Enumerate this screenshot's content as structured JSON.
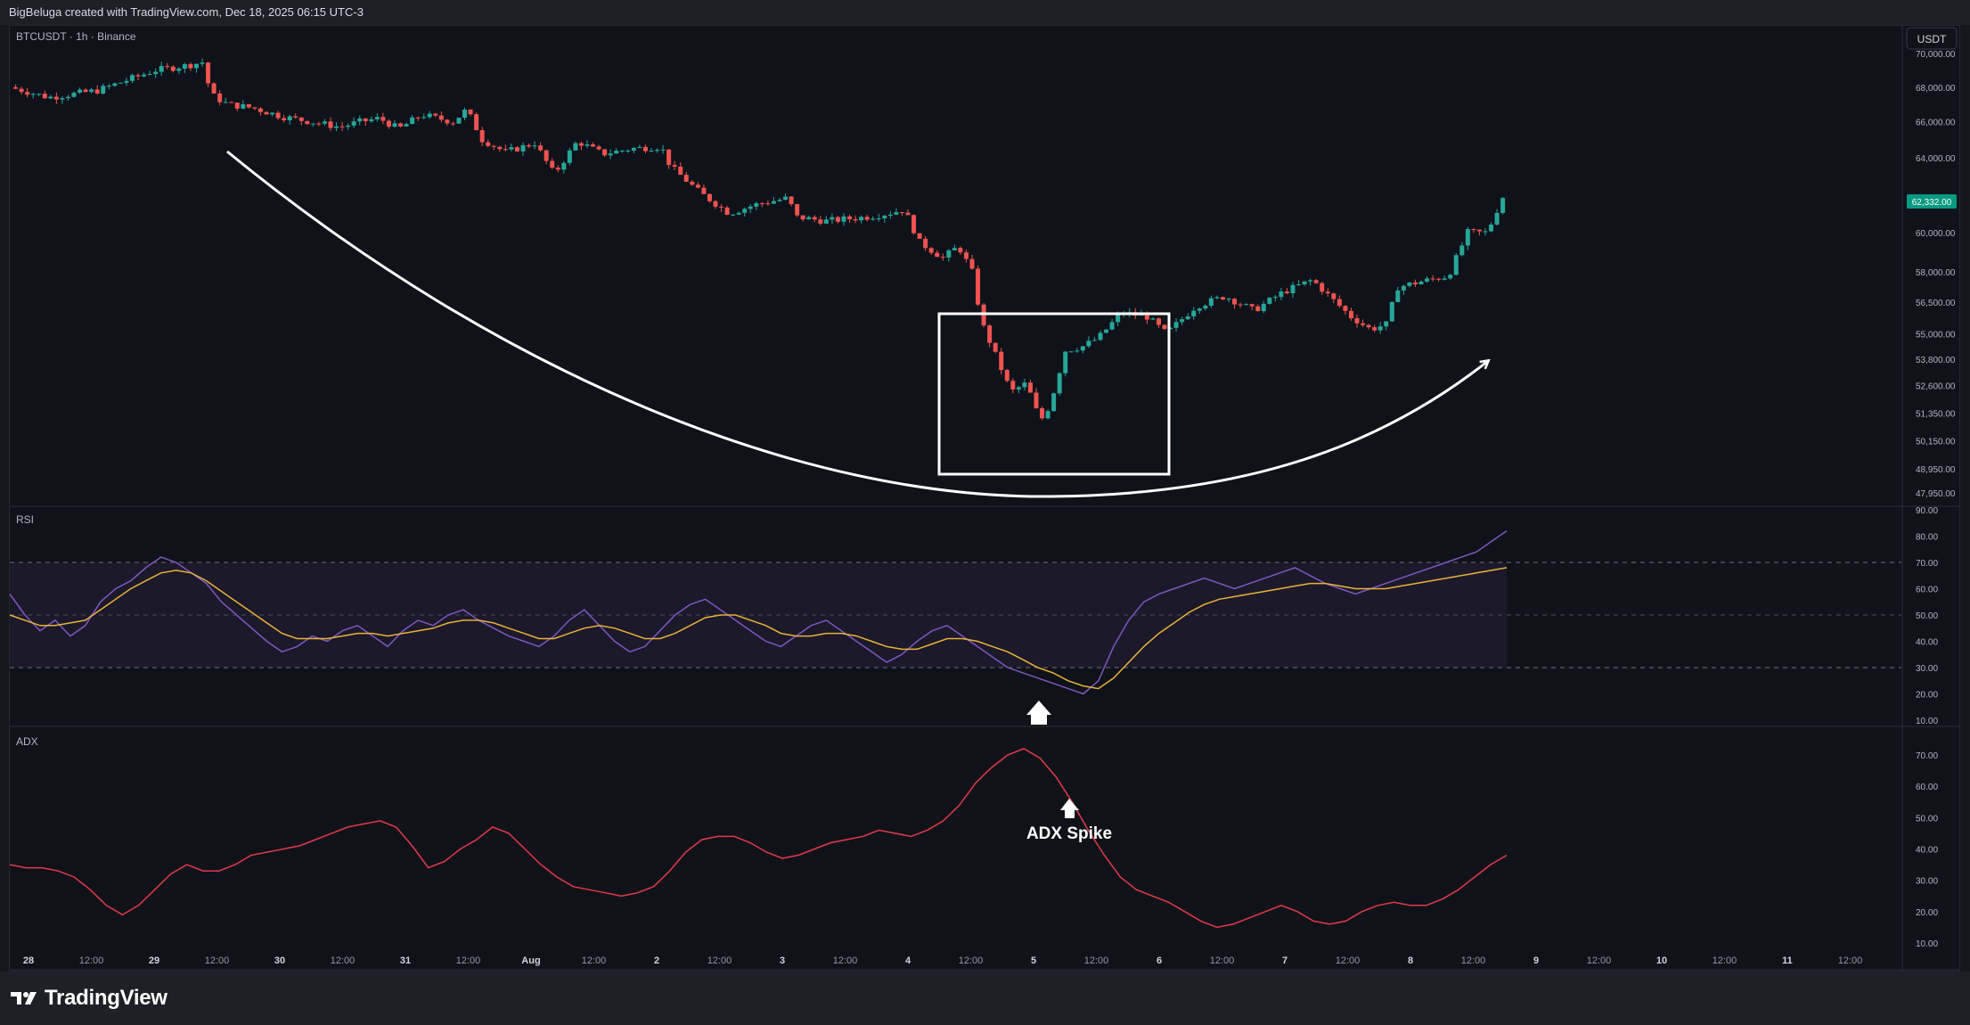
{
  "header": {
    "attribution": "BigBeluga created with TradingView.com, Dec 18, 2025 06:15 UTC-3"
  },
  "symbol_label": "BTCUSDT · 1h · Binance",
  "currency_button": "USDT",
  "footer": {
    "logo_text": "TradingView"
  },
  "colors": {
    "bg": "#101219",
    "up": "#26a69a",
    "down": "#ef5350",
    "rsi": "#7e57c2",
    "rsi_ma": "#e8b23a",
    "adx": "#e23a4a",
    "price_badge": "#089981"
  },
  "icons": {
    "logo": "tradingview-logo-icon",
    "arrow": "up-arrow-icon"
  },
  "chart_data": [
    {
      "type": "candlestick",
      "title": "BTCUSDT · 1h · Binance",
      "ylim": [
        47950,
        70000
      ],
      "y_ticks": [
        "70,000.00",
        "68,000.00",
        "66,000.00",
        "64,000.00",
        "60,000.00",
        "58,000.00",
        "56,500.00",
        "55,000.00",
        "53,800.00",
        "52,600.00",
        "51,350.00",
        "50,150.00",
        "48,950.00",
        "47,950.00"
      ],
      "last_price": "62,332.00",
      "path_points": [
        [
          0,
          68000
        ],
        [
          20,
          67400
        ],
        [
          45,
          67800
        ],
        [
          60,
          68400
        ],
        [
          75,
          69000
        ],
        [
          92,
          69300
        ],
        [
          100,
          69500
        ],
        [
          103,
          67600
        ],
        [
          112,
          67000
        ],
        [
          125,
          66800
        ],
        [
          140,
          66300
        ],
        [
          155,
          66000
        ],
        [
          170,
          65700
        ],
        [
          180,
          66000
        ],
        [
          190,
          66200
        ],
        [
          200,
          65600
        ],
        [
          212,
          66400
        ],
        [
          228,
          66000
        ],
        [
          235,
          66700
        ],
        [
          243,
          65000
        ],
        [
          255,
          64300
        ],
        [
          270,
          64800
        ],
        [
          280,
          63100
        ],
        [
          292,
          64900
        ],
        [
          305,
          64200
        ],
        [
          320,
          64500
        ],
        [
          335,
          64600
        ],
        [
          340,
          63500
        ],
        [
          355,
          62100
        ],
        [
          370,
          61000
        ],
        [
          385,
          61500
        ],
        [
          400,
          61800
        ],
        [
          405,
          60800
        ],
        [
          420,
          60600
        ],
        [
          440,
          60800
        ],
        [
          452,
          61000
        ],
        [
          460,
          61200
        ],
        [
          468,
          59500
        ],
        [
          480,
          58700
        ],
        [
          488,
          59300
        ],
        [
          495,
          58000
        ],
        [
          500,
          55500
        ],
        [
          507,
          54000
        ],
        [
          515,
          52300
        ],
        [
          523,
          52700
        ],
        [
          530,
          51000
        ],
        [
          535,
          51700
        ],
        [
          543,
          54200
        ],
        [
          552,
          54400
        ],
        [
          560,
          54800
        ],
        [
          572,
          56000
        ],
        [
          585,
          55800
        ],
        [
          595,
          55000
        ],
        [
          610,
          56300
        ],
        [
          625,
          56800
        ],
        [
          640,
          56100
        ],
        [
          655,
          57000
        ],
        [
          670,
          57600
        ],
        [
          682,
          56500
        ],
        [
          690,
          55800
        ],
        [
          700,
          55200
        ],
        [
          710,
          55500
        ],
        [
          712,
          57200
        ],
        [
          725,
          57500
        ],
        [
          740,
          57800
        ],
        [
          750,
          60000
        ],
        [
          760,
          60000
        ],
        [
          770,
          62332
        ]
      ],
      "annotations": [
        "rounded-bottom arc with arrow",
        "highlight box around dip"
      ]
    },
    {
      "type": "line",
      "title": "RSI",
      "ylim": [
        10,
        90
      ],
      "y_ticks": [
        "90.00",
        "80.00",
        "70.00",
        "60.00",
        "50.00",
        "40.00",
        "30.00",
        "20.00",
        "10.00"
      ],
      "levels": [
        70,
        50,
        30
      ],
      "series": [
        {
          "values": [
            58,
            50,
            44,
            48,
            42,
            46,
            55,
            60,
            63,
            68,
            72,
            70,
            66,
            62,
            55,
            50,
            45,
            40,
            36,
            38,
            42,
            40,
            44,
            46,
            42,
            38,
            44,
            48,
            46,
            50,
            52,
            48,
            45,
            42,
            40,
            38,
            42,
            48,
            52,
            46,
            40,
            36,
            38,
            44,
            50,
            54,
            56,
            52,
            48,
            44,
            40,
            38,
            42,
            46,
            48,
            44,
            40,
            36,
            32,
            35,
            40,
            44,
            46,
            42,
            38,
            34,
            30,
            28,
            26,
            24,
            22,
            20,
            25,
            38,
            48,
            55,
            58,
            60,
            62,
            64,
            62,
            60,
            62,
            64,
            66,
            68,
            65,
            62,
            60,
            58,
            60,
            62,
            64,
            66,
            68,
            70,
            72,
            74,
            78,
            82
          ]
        },
        {
          "values": [
            50,
            48,
            46,
            46,
            47,
            48,
            52,
            56,
            60,
            63,
            66,
            67,
            66,
            63,
            59,
            55,
            51,
            47,
            43,
            41,
            41,
            41,
            42,
            43,
            43,
            42,
            43,
            44,
            45,
            47,
            48,
            48,
            47,
            45,
            43,
            41,
            41,
            43,
            45,
            46,
            45,
            43,
            41,
            41,
            43,
            46,
            49,
            50,
            50,
            48,
            46,
            43,
            42,
            42,
            43,
            43,
            42,
            40,
            38,
            37,
            37,
            39,
            41,
            41,
            40,
            38,
            36,
            33,
            30,
            28,
            25,
            23,
            22,
            26,
            32,
            38,
            43,
            47,
            51,
            54,
            56,
            57,
            58,
            59,
            60,
            61,
            62,
            62,
            61,
            60,
            60,
            60,
            61,
            62,
            63,
            64,
            65,
            66,
            67,
            68
          ]
        }
      ]
    },
    {
      "type": "line",
      "title": "ADX",
      "ylim": [
        10,
        70
      ],
      "y_ticks": [
        "70.00",
        "60.00",
        "50.00",
        "40.00",
        "30.00",
        "20.00",
        "10.00"
      ],
      "annotations": [
        "ADX Spike"
      ],
      "series": [
        {
          "values": [
            35,
            34,
            34,
            33,
            31,
            27,
            22,
            19,
            22,
            27,
            32,
            35,
            33,
            33,
            35,
            38,
            39,
            40,
            41,
            43,
            45,
            47,
            48,
            49,
            47,
            41,
            34,
            36,
            40,
            43,
            47,
            45,
            40,
            35,
            31,
            28,
            27,
            26,
            25,
            26,
            28,
            33,
            39,
            43,
            44,
            44,
            42,
            39,
            37,
            38,
            40,
            42,
            43,
            44,
            46,
            45,
            44,
            46,
            49,
            54,
            61,
            66,
            70,
            72,
            69,
            63,
            55,
            46,
            38,
            31,
            27,
            25,
            23,
            20,
            17,
            15,
            16,
            18,
            20,
            22,
            20,
            17,
            16,
            17,
            20,
            22,
            23,
            22,
            22,
            24,
            27,
            31,
            35,
            38
          ]
        }
      ]
    }
  ],
  "x_axis": {
    "ticks": [
      "28",
      "12:00",
      "29",
      "12:00",
      "30",
      "12:00",
      "31",
      "12:00",
      "Aug",
      "12:00",
      "2",
      "12:00",
      "3",
      "12:00",
      "4",
      "12:00",
      "5",
      "12:00",
      "6",
      "12:00",
      "7",
      "12:00",
      "8",
      "12:00",
      "9",
      "12:00",
      "10",
      "12:00",
      "11",
      "12:00"
    ]
  },
  "annotations": {
    "adx_spike_label": "ADX Spike"
  }
}
